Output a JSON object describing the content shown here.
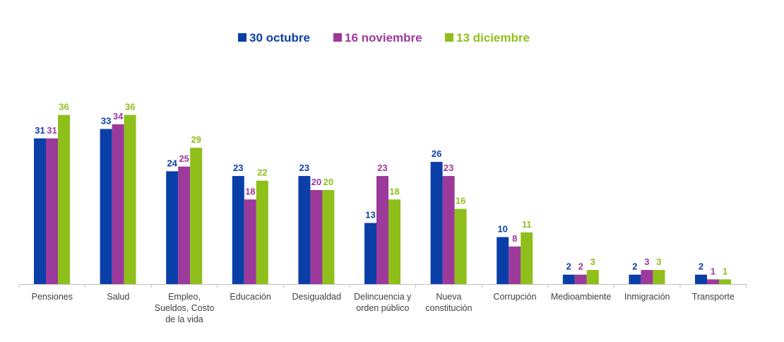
{
  "chart_data": {
    "type": "bar",
    "categories": [
      [
        "Pensiones"
      ],
      [
        "Salud"
      ],
      [
        "Empleo,",
        "Sueldos, Costo",
        "de la vida"
      ],
      [
        "Educación"
      ],
      [
        "Desigualdad"
      ],
      [
        "Delincuencia y",
        "orden público"
      ],
      [
        "Nueva",
        "constitución"
      ],
      [
        "Corrupción"
      ],
      [
        "Medioambiente"
      ],
      [
        "Inmigración"
      ],
      [
        "Transporte"
      ]
    ],
    "series": [
      {
        "name": "30 octubre",
        "color": "#0a3fa8",
        "values": [
          31,
          33,
          24,
          23,
          23,
          13,
          26,
          10,
          2,
          2,
          2
        ]
      },
      {
        "name": "16 noviembre",
        "color": "#9b3a9b",
        "values": [
          31,
          34,
          25,
          18,
          20,
          23,
          23,
          8,
          2,
          3,
          1
        ]
      },
      {
        "name": "13 diciembre",
        "color": "#8fbf1a",
        "values": [
          36,
          36,
          29,
          22,
          20,
          18,
          16,
          11,
          3,
          3,
          1
        ]
      }
    ],
    "legend_position": "top-center",
    "data_labels": true,
    "grid": false
  }
}
